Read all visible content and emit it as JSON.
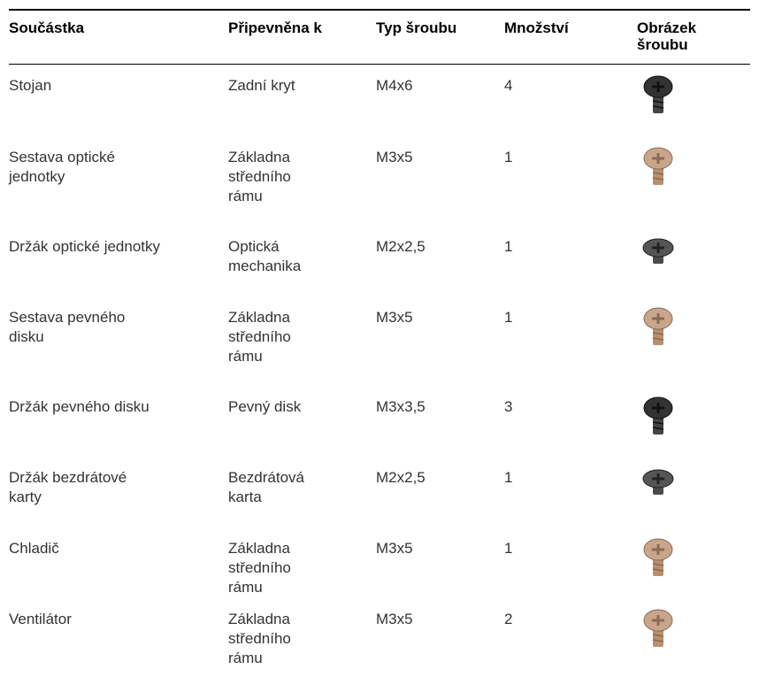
{
  "table": {
    "headers": [
      "Součástka",
      "Připevněna k",
      "Typ šroubu",
      "Množství",
      [
        "Obrázek",
        "šroubu"
      ]
    ],
    "rows": [
      [
        "Stojan",
        "Zadní kryt",
        "M4x6",
        "4"
      ],
      [
        [
          "Sestava optické",
          "jednotky"
        ],
        [
          "Základna",
          "středního",
          "rámu"
        ],
        "M3x5",
        "1"
      ],
      [
        "Držák optické jednotky",
        [
          "Optická",
          "mechanika"
        ],
        "M2x2,5",
        "1"
      ],
      [
        [
          "Sestava pevného",
          "disku"
        ],
        [
          "Základna",
          "středního",
          "rámu"
        ],
        "M3x5",
        "1"
      ],
      [
        "Držák pevného disku",
        "Pevný disk",
        "M3x3,5",
        "3"
      ],
      [
        [
          "Držák bezdrátové",
          "karty"
        ],
        [
          "Bezdrátová",
          "karta"
        ],
        "M2x2,5",
        "1"
      ],
      [
        "Chladič",
        [
          "Základna",
          "středního",
          "rámu"
        ],
        "M3x5",
        "1"
      ],
      [
        "Ventilátor",
        [
          "Základna",
          "středního",
          "rámu"
        ],
        "M3x5",
        "2"
      ]
    ]
  }
}
